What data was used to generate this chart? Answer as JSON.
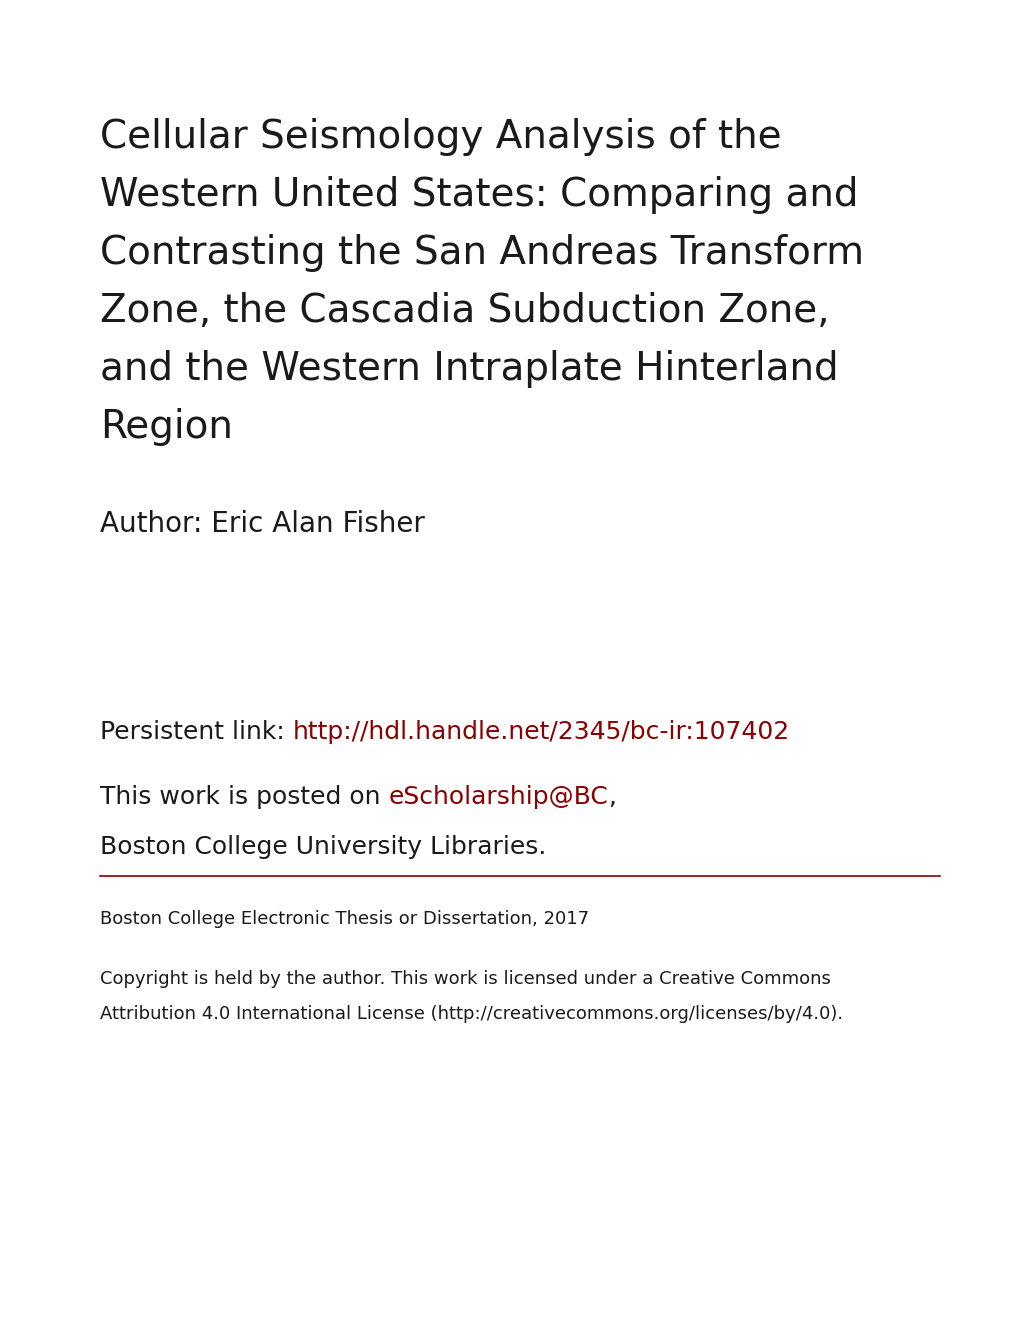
{
  "background_color": "#ffffff",
  "title_lines": [
    "Cellular Seismology Analysis of the",
    "Western United States: Comparing and",
    "Contrasting the San Andreas Transform",
    "Zone, the Cascadia Subduction Zone,",
    "and the Western Intraplate Hinterland",
    "Region"
  ],
  "title_fontsize": 28,
  "title_color": "#1a1a1a",
  "author_label": "Author: Eric Alan Fisher",
  "author_fontsize": 20,
  "author_color": "#1a1a1a",
  "persistent_label": "Persistent link: ",
  "persistent_link": "http://hdl.handle.net/2345/bc-ir:107402",
  "persistent_fontsize": 18,
  "posted_label1": "This work is posted on ",
  "posted_link": "eScholarship@BC",
  "posted_label2": ",",
  "posted_label3": "Boston College University Libraries.",
  "posted_fontsize": 18,
  "link_color": "#8b0000",
  "text_color": "#1a1a1a",
  "line_color": "#8b0000",
  "thesis_text": "Boston College Electronic Thesis or Dissertation, 2017",
  "thesis_fontsize": 13,
  "copyright_line1": "Copyright is held by the author. This work is licensed under a Creative Commons",
  "copyright_line2": "Attribution 4.0 International License (http://creativecommons.org/licenses/by/4.0).",
  "copyright_fontsize": 13
}
